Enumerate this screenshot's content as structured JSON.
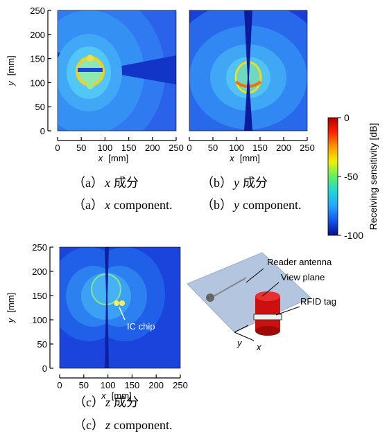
{
  "panels": [
    {
      "xlabel_var": "x",
      "xlabel_unit": "[mm]",
      "ylabel_var": "y",
      "ylabel_unit": "[mm]",
      "xticks": [
        0,
        50,
        100,
        150,
        200,
        250
      ],
      "yticks": [
        0,
        50,
        100,
        150,
        200,
        250
      ],
      "caption_jp": {
        "label": "（a）",
        "var": "x",
        "text": "成分"
      },
      "caption_en": {
        "label": "（a）",
        "var": "x",
        "text": "component."
      }
    },
    {
      "xlabel_var": "x",
      "xlabel_unit": "[mm]",
      "xticks": [
        0,
        50,
        100,
        150,
        200,
        250
      ],
      "caption_jp": {
        "label": "（b）",
        "var": "y",
        "text": "成分"
      },
      "caption_en": {
        "label": "（b）",
        "var": "y",
        "text": "component."
      }
    },
    {
      "xlabel_var": "x",
      "xlabel_unit": "[mm]",
      "ylabel_var": "y",
      "ylabel_unit": "[mm]",
      "xticks": [
        0,
        50,
        100,
        150,
        200,
        250
      ],
      "yticks": [
        0,
        50,
        100,
        150,
        200,
        250
      ],
      "annotation": "IC chip",
      "caption_jp": {
        "label": "（c）",
        "var": "z",
        "text": "成分"
      },
      "caption_en": {
        "label": "（c）",
        "var": "z",
        "text": "component."
      }
    }
  ],
  "colorbar": {
    "label": "Receiving sensitivity [dB]",
    "ticks": [
      0,
      -50,
      -100
    ]
  },
  "diagram": {
    "reader_antenna": "Reader antenna",
    "view_plane": "View plane",
    "rfid_tag": "RFID tag",
    "y_axis": "y",
    "x_axis": "x"
  }
}
